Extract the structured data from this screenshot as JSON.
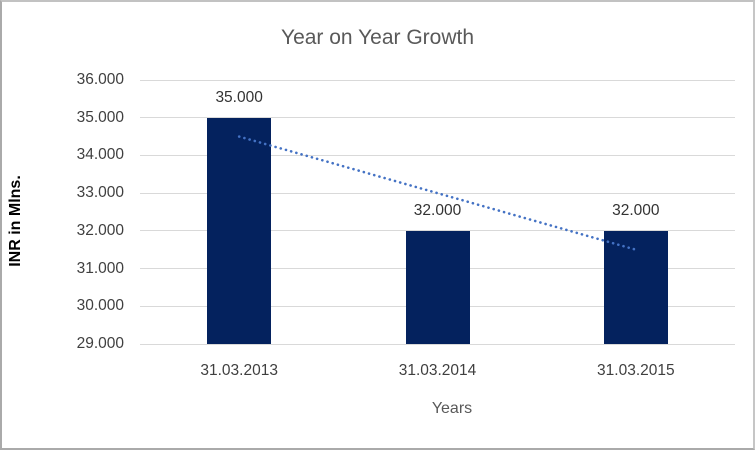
{
  "chart_data": {
    "type": "bar",
    "title": "Year on Year Growth",
    "xlabel": "Years",
    "ylabel": "INR in Mlns.",
    "categories": [
      "31.03.2013",
      "31.03.2014",
      "31.03.2015"
    ],
    "values": [
      35,
      32,
      32
    ],
    "data_labels": [
      "35.000",
      "32.000",
      "32.000"
    ],
    "ylim": [
      29,
      36
    ],
    "ytick_step": 1,
    "ytick_labels": [
      "29.000",
      "30.000",
      "31.000",
      "32.000",
      "33.000",
      "34.000",
      "35.000",
      "36.000"
    ],
    "grid": true,
    "legend": "none",
    "bar_color": "#04225e",
    "gridline_color": "#d9d9d9",
    "trendline": {
      "type": "linear",
      "style": "dotted",
      "color": "#4472c4",
      "start_value": 34.5,
      "end_value": 31.5
    }
  }
}
